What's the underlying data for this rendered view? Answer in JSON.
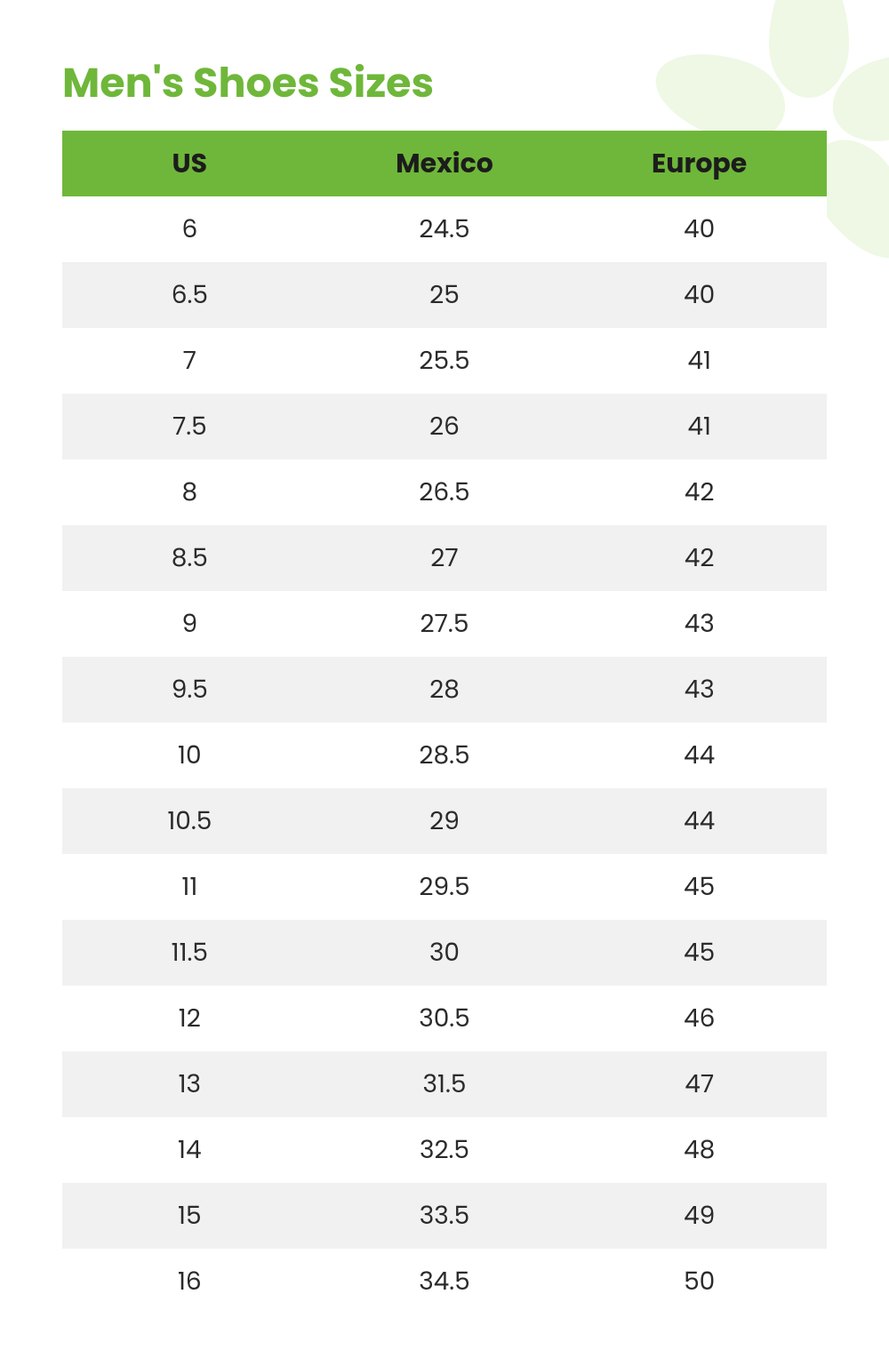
{
  "title": "Men's Shoes Sizes",
  "table": {
    "type": "table",
    "columns": [
      "US",
      "Mexico",
      "Europe"
    ],
    "rows": [
      [
        "6",
        "24.5",
        "40"
      ],
      [
        "6.5",
        "25",
        "40"
      ],
      [
        "7",
        "25.5",
        "41"
      ],
      [
        "7.5",
        "26",
        "41"
      ],
      [
        "8",
        "26.5",
        "42"
      ],
      [
        "8.5",
        "27",
        "42"
      ],
      [
        "9",
        "27.5",
        "43"
      ],
      [
        "9.5",
        "28",
        "43"
      ],
      [
        "10",
        "28.5",
        "44"
      ],
      [
        "10.5",
        "29",
        "44"
      ],
      [
        "11",
        "29.5",
        "45"
      ],
      [
        "11.5",
        "30",
        "45"
      ],
      [
        "12",
        "30.5",
        "46"
      ],
      [
        "13",
        "31.5",
        "47"
      ],
      [
        "14",
        "32.5",
        "48"
      ],
      [
        "15",
        "33.5",
        "49"
      ],
      [
        "16",
        "34.5",
        "50"
      ]
    ],
    "header_bg": "#6FB73A",
    "header_text_color": "#1c1c1c",
    "header_fontsize": 30,
    "cell_fontsize": 28,
    "cell_text_color": "#2b2b2b",
    "row_bg_odd": "#ffffff",
    "row_bg_even": "#f1f1f1",
    "column_align": [
      "center",
      "center",
      "center"
    ]
  },
  "styling": {
    "title_color": "#6FB73A",
    "title_fontsize": 46,
    "background_color": "#ffffff",
    "decoration_color": "#eef8e5"
  }
}
